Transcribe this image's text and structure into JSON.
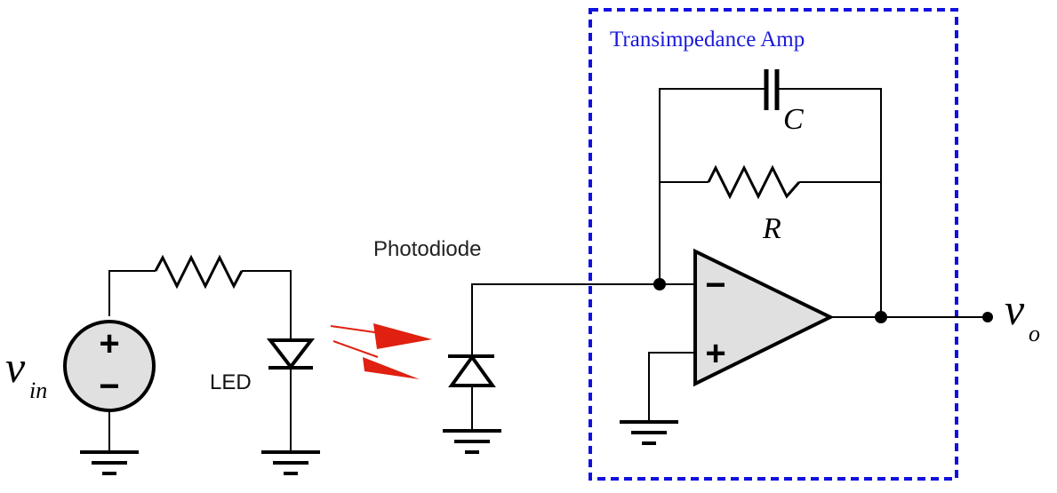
{
  "labels": {
    "vin_main": "v",
    "vin_sub": "in",
    "led": "LED",
    "photodiode": "Photodiode",
    "tia_title": "Transimpedance Amp",
    "capacitor": "C",
    "resistor": "R",
    "vo_main": "v",
    "vo_sub": "o",
    "opamp_minus": "−",
    "opamp_plus": "+",
    "source_plus": "+",
    "source_minus": "−"
  },
  "colors": {
    "tia_box": "#1010e0",
    "tia_title": "#1a1adb",
    "light_arrows": "#e02010",
    "source_fill": "#e0e0e0",
    "opamp_fill": "#e0e0e0"
  }
}
